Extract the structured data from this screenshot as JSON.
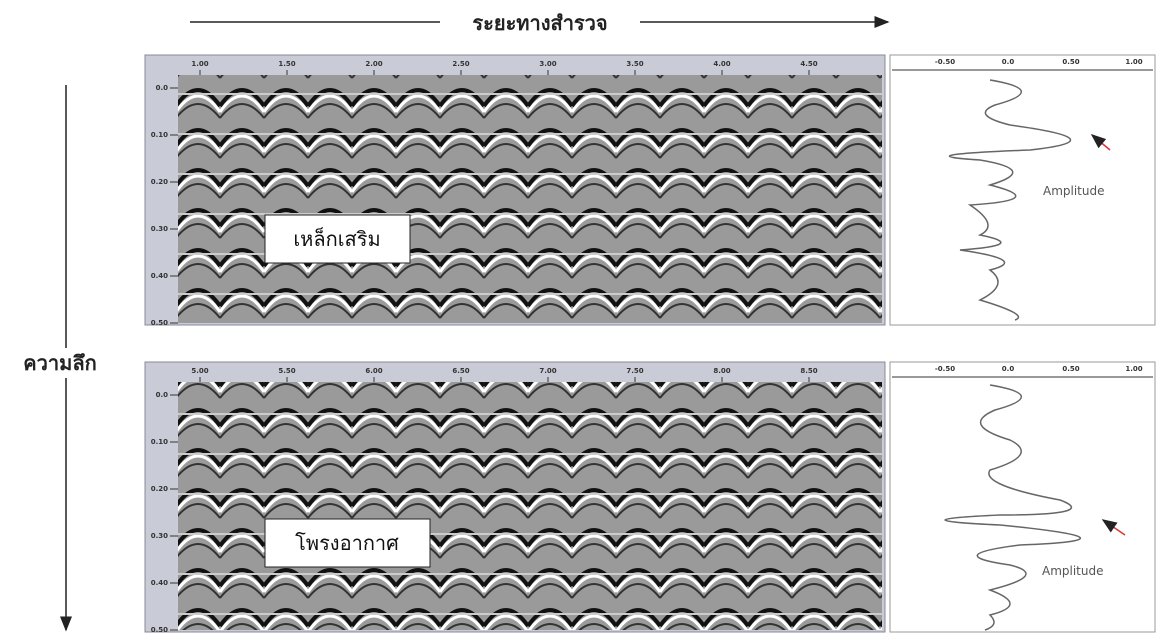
{
  "title": "ระยะทางสำรวจ",
  "depth_label": "ความลึก",
  "panels": [
    {
      "x_ticks": [
        "1.00",
        "1.50",
        "2.00",
        "2.50",
        "3.00",
        "3.50",
        "4.00",
        "4.50"
      ],
      "y_ticks": [
        "0.0",
        "0.10",
        "0.20",
        "0.30",
        "0.40",
        "0.50"
      ],
      "amp_ticks": [
        "-0.50",
        "0.0",
        "0.50",
        "1.00"
      ],
      "label": "เหล็กเสริม",
      "amp_label": "Amplitude"
    },
    {
      "x_ticks": [
        "5.00",
        "5.50",
        "6.00",
        "6.50",
        "7.00",
        "7.50",
        "8.00",
        "8.50"
      ],
      "y_ticks": [
        "0.0",
        "0.10",
        "0.20",
        "0.30",
        "0.40",
        "0.50"
      ],
      "amp_ticks": [
        "-0.50",
        "0.0",
        "0.50",
        "1.00"
      ],
      "label": "โพรงอากาศ",
      "amp_label": "Amplitude"
    }
  ]
}
